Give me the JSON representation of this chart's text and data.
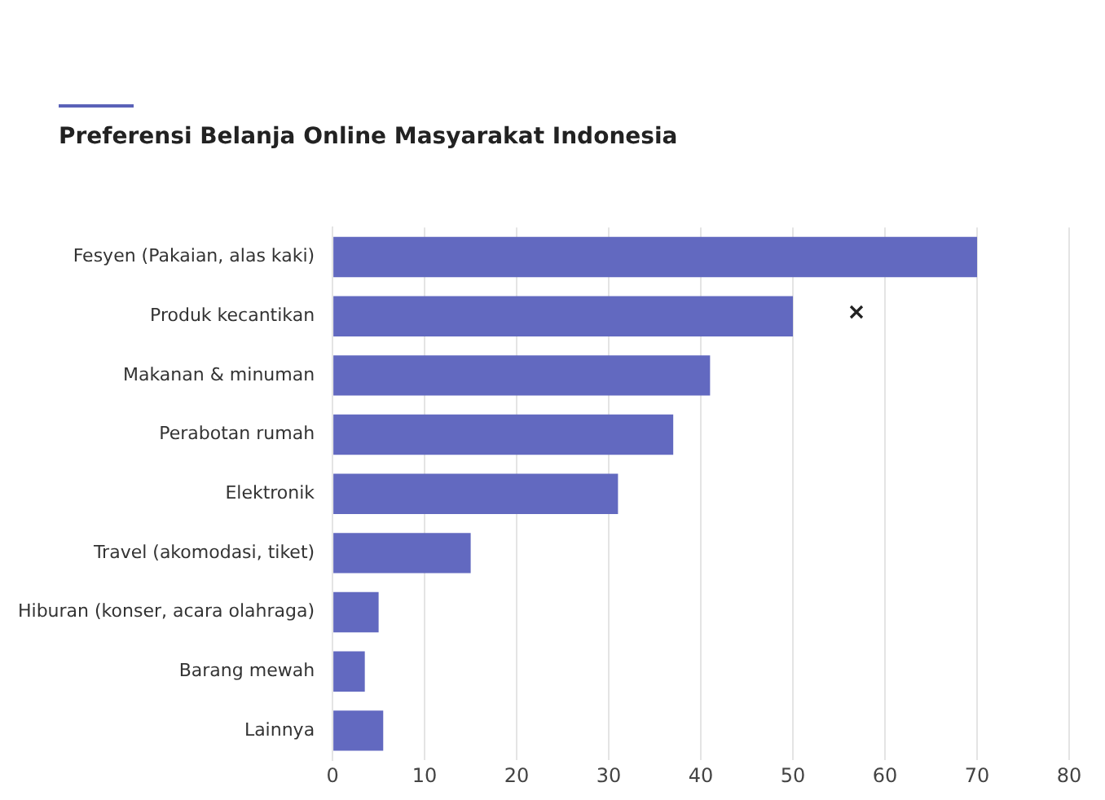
{
  "chart_data": {
    "type": "bar",
    "orientation": "horizontal",
    "title": "Preferensi Belanja Online Masyarakat Indonesia",
    "categories": [
      "Fesyen (Pakaian, alas kaki)",
      "Produk kecantikan",
      "Makanan & minuman",
      "Perabotan rumah",
      "Elektronik",
      "Travel (akomodasi, tiket)",
      "Hiburan (konser, acara olahraga)",
      "Barang mewah",
      "Lainnya"
    ],
    "values": [
      70,
      50,
      41,
      37,
      31,
      15,
      5,
      3.5,
      5.5
    ],
    "color": "#6269c0",
    "xlim": [
      0,
      80
    ],
    "xticks": [
      0,
      10,
      20,
      30,
      40,
      50,
      60,
      70,
      80
    ],
    "grid": "x",
    "legend": false
  }
}
